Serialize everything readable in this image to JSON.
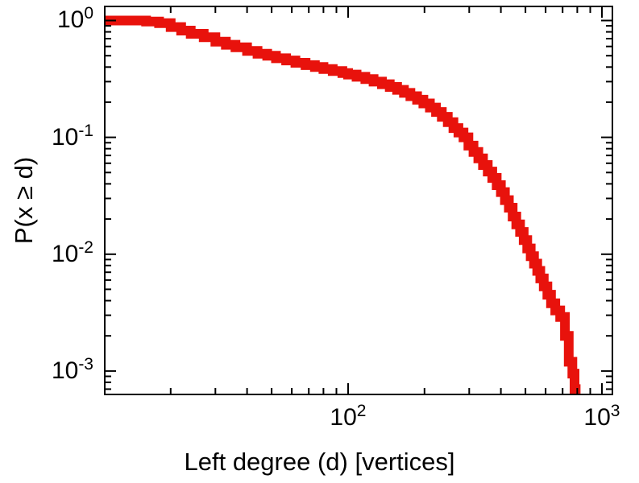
{
  "chart_data": {
    "type": "line",
    "subtype": "ccdf-step",
    "title": "",
    "xlabel": "Left degree (d) [vertices]",
    "ylabel": "P(x ≥ d)",
    "xscale": "log",
    "yscale": "log",
    "xlim": [
      11,
      1100
    ],
    "ylim": [
      0.00063,
      1.32
    ],
    "grid": false,
    "legend": false,
    "x_ticks": [
      {
        "label": "10^2",
        "value": 100
      },
      {
        "label": "10^3",
        "value": 1000
      }
    ],
    "y_ticks": [
      {
        "label": "10^0",
        "value": 1
      },
      {
        "label": "10^-1",
        "value": 0.1
      },
      {
        "label": "10^-2",
        "value": 0.01
      },
      {
        "label": "10^-3",
        "value": 0.001
      }
    ],
    "series": [
      {
        "name": "left-degree-ccdf",
        "color": "#e8120c",
        "line_width": 12,
        "points": [
          [
            11,
            1.0
          ],
          [
            14,
            1.0
          ],
          [
            16,
            0.98
          ],
          [
            18,
            0.95
          ],
          [
            20,
            0.88
          ],
          [
            22,
            0.82
          ],
          [
            24,
            0.77
          ],
          [
            27,
            0.72
          ],
          [
            30,
            0.66
          ],
          [
            33,
            0.62
          ],
          [
            36,
            0.59
          ],
          [
            40,
            0.55
          ],
          [
            44,
            0.52
          ],
          [
            48,
            0.5
          ],
          [
            52,
            0.475
          ],
          [
            57,
            0.455
          ],
          [
            62,
            0.435
          ],
          [
            68,
            0.415
          ],
          [
            74,
            0.4
          ],
          [
            80,
            0.385
          ],
          [
            87,
            0.37
          ],
          [
            95,
            0.355
          ],
          [
            100,
            0.345
          ],
          [
            108,
            0.33
          ],
          [
            117,
            0.315
          ],
          [
            126,
            0.3
          ],
          [
            136,
            0.285
          ],
          [
            146,
            0.27
          ],
          [
            156,
            0.255
          ],
          [
            166,
            0.24
          ],
          [
            176,
            0.225
          ],
          [
            187,
            0.21
          ],
          [
            198,
            0.195
          ],
          [
            210,
            0.18
          ],
          [
            222,
            0.165
          ],
          [
            234,
            0.15
          ],
          [
            247,
            0.135
          ],
          [
            260,
            0.12
          ],
          [
            272,
            0.11
          ],
          [
            285,
            0.1
          ],
          [
            298,
            0.085
          ],
          [
            312,
            0.075
          ],
          [
            326,
            0.066
          ],
          [
            340,
            0.058
          ],
          [
            355,
            0.051
          ],
          [
            370,
            0.045
          ],
          [
            385,
            0.039
          ],
          [
            400,
            0.034
          ],
          [
            415,
            0.029
          ],
          [
            430,
            0.025
          ],
          [
            445,
            0.021
          ],
          [
            460,
            0.018
          ],
          [
            476,
            0.0155
          ],
          [
            492,
            0.0132
          ],
          [
            508,
            0.0112
          ],
          [
            524,
            0.0096
          ],
          [
            540,
            0.0083
          ],
          [
            556,
            0.0072
          ],
          [
            572,
            0.0062
          ],
          [
            590,
            0.0053
          ],
          [
            610,
            0.0045
          ],
          [
            630,
            0.0038
          ],
          [
            655,
            0.0033
          ],
          [
            685,
            0.0029
          ],
          [
            715,
            0.002
          ],
          [
            740,
            0.0012
          ],
          [
            765,
            0.00095
          ],
          [
            780,
            0.0007
          ],
          [
            788,
            0.00063
          ]
        ]
      }
    ],
    "axis_color": "#000000",
    "background_color": "#ffffff"
  }
}
